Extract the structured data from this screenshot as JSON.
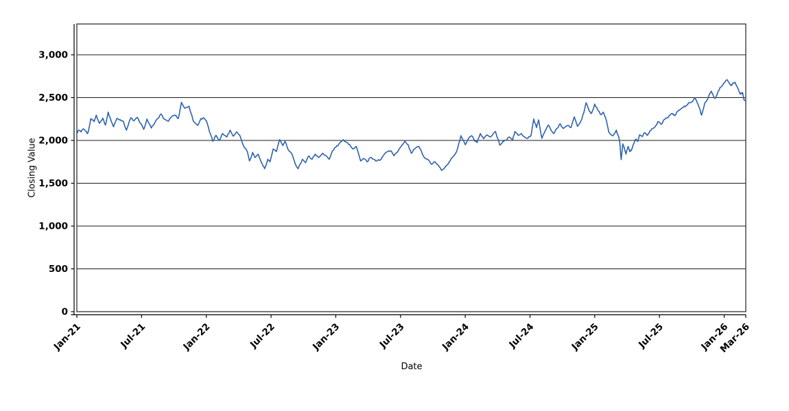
{
  "chart_data": {
    "type": "line",
    "title": "",
    "xlabel": "Date",
    "ylabel": "Closing Value",
    "grid": "horizontal-black-lines",
    "legend": "none",
    "background": "#ffffff",
    "x_unit": "months since Jan-2021",
    "xlim_months": [
      0,
      62
    ],
    "ylim": [
      0,
      3360
    ],
    "y_ticks": [
      0,
      500,
      1000,
      1500,
      2000,
      2500,
      3000
    ],
    "y_tick_labels": [
      "0",
      "500",
      "1,000",
      "1,500",
      "2,000",
      "2,500",
      "3,000"
    ],
    "x_tick_positions_months": [
      0,
      6,
      12,
      18,
      24,
      30,
      36,
      42,
      48,
      54,
      60,
      62
    ],
    "x_tick_labels": [
      "Jan-21",
      "Jul-21",
      "Jan-22",
      "Jul-22",
      "Jan-23",
      "Jul-23",
      "Jan-24",
      "Jul-24",
      "Jan-25",
      "Jul-25",
      "Jan-26",
      "Mar-26"
    ],
    "x_tick_label_rotation_deg": -45,
    "series": [
      {
        "name": "Closing Value",
        "color": "#2D61AC",
        "stroke_width": 1.6,
        "points": [
          [
            0.0,
            2090
          ],
          [
            0.2,
            2120
          ],
          [
            0.4,
            2100
          ],
          [
            0.6,
            2135
          ],
          [
            0.8,
            2110
          ],
          [
            1.0,
            2080
          ],
          [
            1.15,
            2160
          ],
          [
            1.3,
            2255
          ],
          [
            1.6,
            2220
          ],
          [
            1.8,
            2295
          ],
          [
            2.1,
            2200
          ],
          [
            2.4,
            2260
          ],
          [
            2.65,
            2180
          ],
          [
            2.9,
            2330
          ],
          [
            3.2,
            2220
          ],
          [
            3.4,
            2160
          ],
          [
            3.7,
            2255
          ],
          [
            4.0,
            2245
          ],
          [
            4.3,
            2225
          ],
          [
            4.6,
            2120
          ],
          [
            5.0,
            2265
          ],
          [
            5.3,
            2230
          ],
          [
            5.6,
            2270
          ],
          [
            5.9,
            2200
          ],
          [
            6.2,
            2130
          ],
          [
            6.5,
            2250
          ],
          [
            6.9,
            2145
          ],
          [
            7.2,
            2200
          ],
          [
            7.5,
            2255
          ],
          [
            7.8,
            2310
          ],
          [
            8.1,
            2250
          ],
          [
            8.5,
            2225
          ],
          [
            8.8,
            2280
          ],
          [
            9.1,
            2295
          ],
          [
            9.4,
            2255
          ],
          [
            9.7,
            2445
          ],
          [
            10.0,
            2375
          ],
          [
            10.4,
            2400
          ],
          [
            10.8,
            2225
          ],
          [
            11.2,
            2175
          ],
          [
            11.5,
            2255
          ],
          [
            11.8,
            2260
          ],
          [
            12.0,
            2230
          ],
          [
            12.3,
            2100
          ],
          [
            12.6,
            1990
          ],
          [
            12.9,
            2060
          ],
          [
            13.2,
            2000
          ],
          [
            13.5,
            2080
          ],
          [
            13.9,
            2040
          ],
          [
            14.2,
            2120
          ],
          [
            14.5,
            2050
          ],
          [
            14.8,
            2100
          ],
          [
            15.1,
            2060
          ],
          [
            15.4,
            1950
          ],
          [
            15.8,
            1870
          ],
          [
            16.0,
            1760
          ],
          [
            16.3,
            1860
          ],
          [
            16.5,
            1800
          ],
          [
            16.8,
            1840
          ],
          [
            17.2,
            1720
          ],
          [
            17.4,
            1670
          ],
          [
            17.7,
            1780
          ],
          [
            17.9,
            1750
          ],
          [
            18.2,
            1900
          ],
          [
            18.5,
            1870
          ],
          [
            18.8,
            2010
          ],
          [
            19.1,
            1940
          ],
          [
            19.3,
            1990
          ],
          [
            19.6,
            1890
          ],
          [
            19.9,
            1850
          ],
          [
            20.2,
            1740
          ],
          [
            20.5,
            1670
          ],
          [
            20.9,
            1780
          ],
          [
            21.2,
            1740
          ],
          [
            21.5,
            1820
          ],
          [
            21.8,
            1780
          ],
          [
            22.1,
            1840
          ],
          [
            22.4,
            1800
          ],
          [
            22.8,
            1850
          ],
          [
            23.1,
            1820
          ],
          [
            23.4,
            1780
          ],
          [
            23.7,
            1880
          ],
          [
            24.0,
            1920
          ],
          [
            24.3,
            1960
          ],
          [
            24.7,
            2010
          ],
          [
            25.0,
            1980
          ],
          [
            25.3,
            1950
          ],
          [
            25.6,
            1900
          ],
          [
            25.9,
            1930
          ],
          [
            26.3,
            1760
          ],
          [
            26.6,
            1790
          ],
          [
            26.9,
            1750
          ],
          [
            27.2,
            1800
          ],
          [
            27.5,
            1780
          ],
          [
            27.8,
            1760
          ],
          [
            28.2,
            1780
          ],
          [
            28.5,
            1840
          ],
          [
            28.8,
            1870
          ],
          [
            29.1,
            1880
          ],
          [
            29.4,
            1820
          ],
          [
            29.8,
            1880
          ],
          [
            30.1,
            1940
          ],
          [
            30.4,
            1990
          ],
          [
            30.7,
            1950
          ],
          [
            31.0,
            1850
          ],
          [
            31.3,
            1900
          ],
          [
            31.7,
            1930
          ],
          [
            32.0,
            1850
          ],
          [
            32.3,
            1790
          ],
          [
            32.6,
            1770
          ],
          [
            32.9,
            1720
          ],
          [
            33.2,
            1750
          ],
          [
            33.6,
            1690
          ],
          [
            33.8,
            1650
          ],
          [
            34.2,
            1700
          ],
          [
            34.5,
            1745
          ],
          [
            34.8,
            1800
          ],
          [
            35.2,
            1870
          ],
          [
            35.5,
            2000
          ],
          [
            35.6,
            2055
          ],
          [
            36.0,
            1950
          ],
          [
            36.3,
            2020
          ],
          [
            36.6,
            2055
          ],
          [
            36.9,
            1990
          ],
          [
            37.1,
            1975
          ],
          [
            37.4,
            2080
          ],
          [
            37.7,
            2020
          ],
          [
            38.0,
            2065
          ],
          [
            38.3,
            2040
          ],
          [
            38.8,
            2105
          ],
          [
            39.2,
            1945
          ],
          [
            39.5,
            1990
          ],
          [
            39.7,
            2000
          ],
          [
            40.1,
            2040
          ],
          [
            40.4,
            2010
          ],
          [
            40.6,
            2105
          ],
          [
            40.9,
            2060
          ],
          [
            41.2,
            2080
          ],
          [
            41.5,
            2040
          ],
          [
            41.8,
            2025
          ],
          [
            42.1,
            2060
          ],
          [
            42.35,
            2250
          ],
          [
            42.6,
            2150
          ],
          [
            42.8,
            2240
          ],
          [
            43.1,
            2025
          ],
          [
            43.4,
            2110
          ],
          [
            43.7,
            2180
          ],
          [
            44.0,
            2110
          ],
          [
            44.2,
            2080
          ],
          [
            44.5,
            2140
          ],
          [
            44.8,
            2195
          ],
          [
            45.1,
            2140
          ],
          [
            45.5,
            2175
          ],
          [
            45.8,
            2150
          ],
          [
            46.1,
            2275
          ],
          [
            46.4,
            2165
          ],
          [
            46.7,
            2220
          ],
          [
            47.0,
            2330
          ],
          [
            47.2,
            2440
          ],
          [
            47.5,
            2340
          ],
          [
            47.7,
            2315
          ],
          [
            48.0,
            2425
          ],
          [
            48.3,
            2350
          ],
          [
            48.6,
            2300
          ],
          [
            48.8,
            2330
          ],
          [
            49.1,
            2225
          ],
          [
            49.3,
            2095
          ],
          [
            49.5,
            2070
          ],
          [
            49.7,
            2055
          ],
          [
            50.0,
            2120
          ],
          [
            50.2,
            2050
          ],
          [
            50.3,
            2000
          ],
          [
            50.45,
            1775
          ],
          [
            50.6,
            1960
          ],
          [
            50.9,
            1840
          ],
          [
            51.1,
            1930
          ],
          [
            51.25,
            1870
          ],
          [
            51.4,
            1885
          ],
          [
            51.6,
            1960
          ],
          [
            51.8,
            2015
          ],
          [
            52.0,
            1990
          ],
          [
            52.15,
            2065
          ],
          [
            52.4,
            2045
          ],
          [
            52.6,
            2090
          ],
          [
            52.9,
            2060
          ],
          [
            53.1,
            2110
          ],
          [
            53.4,
            2140
          ],
          [
            53.7,
            2180
          ],
          [
            53.9,
            2220
          ],
          [
            54.2,
            2190
          ],
          [
            54.4,
            2240
          ],
          [
            54.7,
            2260
          ],
          [
            54.9,
            2290
          ],
          [
            55.2,
            2315
          ],
          [
            55.4,
            2290
          ],
          [
            55.7,
            2340
          ],
          [
            55.9,
            2360
          ],
          [
            56.2,
            2385
          ],
          [
            56.5,
            2410
          ],
          [
            56.7,
            2440
          ],
          [
            57.0,
            2450
          ],
          [
            57.3,
            2500
          ],
          [
            57.5,
            2440
          ],
          [
            57.7,
            2380
          ],
          [
            57.9,
            2295
          ],
          [
            58.2,
            2435
          ],
          [
            58.4,
            2470
          ],
          [
            58.6,
            2530
          ],
          [
            58.8,
            2575
          ],
          [
            59.0,
            2520
          ],
          [
            59.15,
            2490
          ],
          [
            59.4,
            2560
          ],
          [
            59.6,
            2615
          ],
          [
            59.9,
            2655
          ],
          [
            60.1,
            2690
          ],
          [
            60.3,
            2705
          ],
          [
            60.5,
            2660
          ],
          [
            60.65,
            2640
          ],
          [
            60.8,
            2670
          ],
          [
            61.0,
            2680
          ],
          [
            61.3,
            2600
          ],
          [
            61.5,
            2540
          ],
          [
            61.7,
            2560
          ],
          [
            61.85,
            2470
          ],
          [
            62.0,
            2455
          ]
        ]
      }
    ],
    "render_hints": {
      "jitter_amplitude": 9,
      "axis_color": "#000000",
      "grid_color": "#1a1a1a",
      "border_color": "#3f3f3f",
      "tick_label_color": "#000000"
    }
  }
}
